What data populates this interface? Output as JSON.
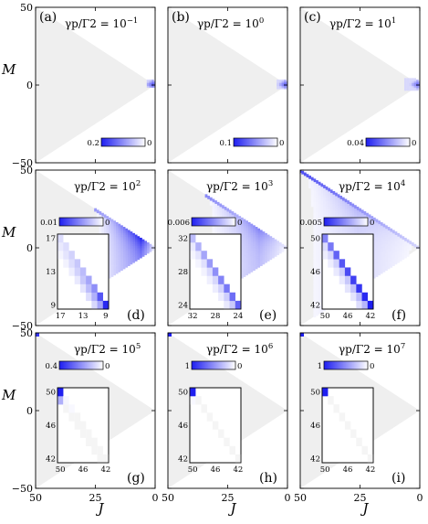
{
  "figure": {
    "y_axis_label": "M",
    "x_axis_label": "J",
    "y_ticks": [
      "50",
      "0",
      "−50"
    ],
    "x_ticks": [
      "50",
      "25",
      "0"
    ]
  },
  "colors": {
    "triangle_fill": "#efefef",
    "population_max": "#1e1ef0",
    "population_zero": "#ffffff"
  },
  "chart_data": [
    {
      "type": "heatmap",
      "label": "(a)",
      "title": "γp/Γ2 = 10⁻¹",
      "title_base": "γp/Γ2 = 10",
      "title_exp": "−1",
      "colorbar": {
        "min_label": "0",
        "max_label": "0.2",
        "max": 0.2
      },
      "xlim": [
        50,
        0
      ],
      "ylim": [
        -50,
        50
      ],
      "highlight": {
        "j": [
          0,
          3
        ],
        "m": [
          -1,
          3
        ],
        "intensity": 0.8
      },
      "inset": null
    },
    {
      "type": "heatmap",
      "label": "(b)",
      "title": "γp/Γ2 = 10⁰",
      "title_base": "γp/Γ2 = 10",
      "title_exp": "0",
      "colorbar": {
        "min_label": "0",
        "max_label": "0.1",
        "max": 0.1
      },
      "xlim": [
        50,
        0
      ],
      "ylim": [
        -50,
        50
      ],
      "highlight": {
        "j": [
          0,
          4
        ],
        "m": [
          -2,
          3
        ],
        "intensity": 0.75
      },
      "inset": null
    },
    {
      "type": "heatmap",
      "label": "(c)",
      "title": "γp/Γ2 = 10¹",
      "title_base": "γp/Γ2 = 10",
      "title_exp": "1",
      "colorbar": {
        "min_label": "0",
        "max_label": "0.04",
        "max": 0.04
      },
      "xlim": [
        50,
        0
      ],
      "ylim": [
        -50,
        50
      ],
      "highlight": {
        "j": [
          0,
          6
        ],
        "m": [
          -3,
          4
        ],
        "intensity": 0.7
      },
      "inset": null
    },
    {
      "type": "heatmap",
      "label": "(d)",
      "title": "γp/Γ2 = 10²",
      "title_base": "γp/Γ2 = 10",
      "title_exp": "2",
      "colorbar": {
        "min_label": "0",
        "max_label": "0.01",
        "max": 0.01
      },
      "xlim": [
        50,
        0
      ],
      "ylim": [
        -50,
        50
      ],
      "band": {
        "j_start": 25,
        "peak_j": 6,
        "edge": 0.35,
        "core": 0.95
      },
      "inset": {
        "x_ticks": [
          "17",
          "13",
          "9"
        ],
        "y_ticks": [
          "17",
          "13",
          "9"
        ],
        "range": [
          17,
          9
        ],
        "diag": [
          0.15,
          0.15,
          0.2,
          0.25,
          0.3,
          0.4,
          0.5,
          0.75,
          0.95
        ],
        "off1": [
          0.1,
          0.12,
          0.15,
          0.2,
          0.25,
          0.3,
          0.35,
          0.4
        ],
        "off2": [
          0.05,
          0.06,
          0.08,
          0.1,
          0.12,
          0.15,
          0.18
        ]
      }
    },
    {
      "type": "heatmap",
      "label": "(e)",
      "title": "γp/Γ2 = 10³",
      "title_base": "γp/Γ2 = 10",
      "title_exp": "3",
      "colorbar": {
        "min_label": "0",
        "max_label": "0.006",
        "max": 0.006
      },
      "xlim": [
        50,
        0
      ],
      "ylim": [
        -50,
        50
      ],
      "band": {
        "j_start": 34,
        "peak_j": 12,
        "edge": 0.4,
        "core": 0.55
      },
      "inset": {
        "x_ticks": [
          "32",
          "28",
          "24"
        ],
        "y_ticks": [
          "32",
          "28",
          "24"
        ],
        "range": [
          32,
          24
        ],
        "diag": [
          0.3,
          0.35,
          0.4,
          0.45,
          0.5,
          0.55,
          0.6,
          0.65,
          0.7
        ],
        "off1": [
          0.1,
          0.12,
          0.14,
          0.16,
          0.18,
          0.2,
          0.22,
          0.24
        ],
        "off2": [
          0.05,
          0.05,
          0.06,
          0.07,
          0.08,
          0.09,
          0.1
        ]
      }
    },
    {
      "type": "heatmap",
      "label": "(f)",
      "title": "γp/Γ2 = 10⁴",
      "title_base": "γp/Γ2 = 10",
      "title_exp": "4",
      "colorbar": {
        "min_label": "0",
        "max_label": "0.005",
        "max": 0.005
      },
      "xlim": [
        50,
        0
      ],
      "ylim": [
        -50,
        50
      ],
      "band": {
        "j_start": 50,
        "peak_j": 26,
        "edge": 0.6,
        "core": 0.35
      },
      "inset": {
        "x_ticks": [
          "50",
          "46",
          "42"
        ],
        "y_ticks": [
          "50",
          "46",
          "42"
        ],
        "range": [
          50,
          42
        ],
        "diag": [
          0.55,
          0.6,
          0.7,
          0.75,
          0.8,
          0.85,
          0.9,
          0.95,
          1.0
        ],
        "off1": [
          0.15,
          0.18,
          0.2,
          0.22,
          0.25,
          0.28,
          0.3,
          0.32
        ],
        "off2": [
          0.08,
          0.08,
          0.1,
          0.1,
          0.12,
          0.12,
          0.15
        ]
      }
    },
    {
      "type": "heatmap",
      "label": "(g)",
      "title": "γp/Γ2 = 10⁵",
      "title_base": "γp/Γ2 = 10",
      "title_exp": "5",
      "colorbar": {
        "min_label": "0",
        "max_label": "0.4",
        "max": 0.4
      },
      "xlim": [
        50,
        0
      ],
      "ylim": [
        -50,
        50
      ],
      "corner": {
        "intensity": 0.9
      },
      "inset": {
        "x_ticks": [
          "50",
          "46",
          "42"
        ],
        "y_ticks": [
          "50",
          "46",
          "42"
        ],
        "range": [
          50,
          42
        ],
        "diag": [
          1.0,
          0.04,
          0.03,
          0.02,
          0.02,
          0.02,
          0.02,
          0.02,
          0.02
        ],
        "off1": [
          0.35,
          0.02,
          0.02,
          0.02,
          0.02,
          0.02,
          0.02,
          0.02
        ],
        "off2": [
          0.0,
          0.0,
          0.0,
          0.0,
          0.0,
          0.0,
          0.0
        ]
      }
    },
    {
      "type": "heatmap",
      "label": "(h)",
      "title": "γp/Γ2 = 10⁶",
      "title_base": "γp/Γ2 = 10",
      "title_exp": "6",
      "colorbar": {
        "min_label": "0",
        "max_label": "1",
        "max": 1
      },
      "xlim": [
        50,
        0
      ],
      "ylim": [
        -50,
        50
      ],
      "corner": {
        "intensity": 1.0
      },
      "inset": {
        "x_ticks": [
          "50",
          "46",
          "42"
        ],
        "y_ticks": [
          "50",
          "46",
          "42"
        ],
        "range": [
          50,
          42
        ],
        "diag": [
          1.0,
          0.02,
          0.02,
          0.02,
          0.02,
          0.02,
          0.02,
          0.02,
          0.02
        ],
        "off1": [
          0.03,
          0.0,
          0.0,
          0.0,
          0.0,
          0.0,
          0.0,
          0.0
        ],
        "off2": [
          0.0,
          0.0,
          0.0,
          0.0,
          0.0,
          0.0,
          0.0
        ]
      }
    },
    {
      "type": "heatmap",
      "label": "(i)",
      "title": "γp/Γ2 = 10⁷",
      "title_base": "γp/Γ2 = 10",
      "title_exp": "7",
      "colorbar": {
        "min_label": "0",
        "max_label": "1",
        "max": 1
      },
      "xlim": [
        50,
        0
      ],
      "ylim": [
        -50,
        50
      ],
      "corner": {
        "intensity": 1.0
      },
      "inset": {
        "x_ticks": [
          "50",
          "46",
          "42"
        ],
        "y_ticks": [
          "50",
          "46",
          "42"
        ],
        "range": [
          50,
          42
        ],
        "diag": [
          1.0,
          0.02,
          0.02,
          0.02,
          0.02,
          0.02,
          0.02,
          0.02,
          0.02
        ],
        "off1": [
          0.0,
          0.0,
          0.0,
          0.0,
          0.0,
          0.0,
          0.0,
          0.0
        ],
        "off2": [
          0.0,
          0.0,
          0.0,
          0.0,
          0.0,
          0.0,
          0.0
        ]
      }
    }
  ]
}
